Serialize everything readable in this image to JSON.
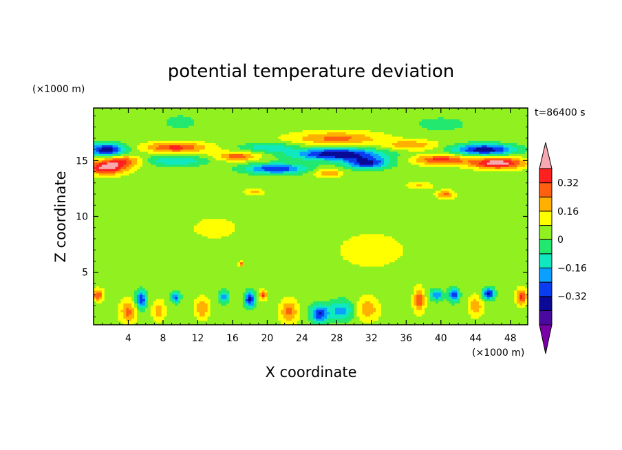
{
  "chart_data": {
    "type": "heatmap",
    "title": "potential temperature deviation",
    "xlabel": "X coordinate",
    "ylabel": "Z coordinate",
    "x_unit": "(×1000 m)",
    "y_unit": "(×1000 m)",
    "time_label": "t=86400 s",
    "xlim": [
      0,
      50
    ],
    "ylim": [
      0.3,
      19.7
    ],
    "x_ticks": [
      4,
      8,
      12,
      16,
      20,
      24,
      28,
      32,
      36,
      40,
      44,
      48
    ],
    "y_ticks": [
      5,
      10,
      15
    ],
    "colorbar": {
      "levels": [
        -0.48,
        -0.4,
        -0.32,
        -0.24,
        -0.16,
        -0.08,
        0,
        0.08,
        0.16,
        0.24,
        0.32,
        0.4
      ],
      "colors": [
        "#7a00a8",
        "#4a0aa0",
        "#0a0a96",
        "#0a3cf0",
        "#0aa0ff",
        "#10e8c0",
        "#22e870",
        "#90f020",
        "#ffff00",
        "#ffb000",
        "#ff6010",
        "#ff2020",
        "#f8a8b0"
      ],
      "tick_labels": [
        "0.32",
        "0.16",
        "0",
        "−0.16",
        "−0.32"
      ],
      "tick_values": [
        0.32,
        0.16,
        0,
        -0.16,
        -0.32
      ]
    },
    "features": [
      {
        "x": 1.5,
        "z": 16.0,
        "sx": 2.2,
        "sz": 0.55,
        "v": -0.42
      },
      {
        "x": 1.5,
        "z": 14.4,
        "sx": 2.2,
        "sz": 0.6,
        "v": 0.4
      },
      {
        "x": 3.5,
        "z": 15.0,
        "sx": 2.0,
        "sz": 0.5,
        "v": 0.24
      },
      {
        "x": 9.5,
        "z": 16.2,
        "sx": 3.5,
        "sz": 0.45,
        "v": 0.3
      },
      {
        "x": 9.5,
        "z": 15.0,
        "sx": 3.5,
        "sz": 0.45,
        "v": -0.2
      },
      {
        "x": 16.5,
        "z": 15.4,
        "sx": 2.5,
        "sz": 0.4,
        "v": 0.24
      },
      {
        "x": 20.0,
        "z": 16.2,
        "sx": 3.0,
        "sz": 0.4,
        "v": -0.18
      },
      {
        "x": 21.0,
        "z": 14.3,
        "sx": 3.5,
        "sz": 0.45,
        "v": -0.36
      },
      {
        "x": 28.0,
        "z": 17.0,
        "sx": 5.0,
        "sz": 0.6,
        "v": 0.22
      },
      {
        "x": 28.0,
        "z": 15.6,
        "sx": 5.0,
        "sz": 0.55,
        "v": -0.44
      },
      {
        "x": 31.5,
        "z": 14.8,
        "sx": 2.5,
        "sz": 0.5,
        "v": -0.38
      },
      {
        "x": 27.0,
        "z": 13.9,
        "sx": 1.5,
        "sz": 0.35,
        "v": 0.2
      },
      {
        "x": 36.5,
        "z": 16.4,
        "sx": 3.0,
        "sz": 0.45,
        "v": 0.18
      },
      {
        "x": 40.0,
        "z": 15.1,
        "sx": 3.0,
        "sz": 0.45,
        "v": 0.3
      },
      {
        "x": 45.0,
        "z": 16.0,
        "sx": 3.5,
        "sz": 0.5,
        "v": -0.42
      },
      {
        "x": 46.5,
        "z": 14.8,
        "sx": 3.0,
        "sz": 0.5,
        "v": 0.42
      },
      {
        "x": 40.5,
        "z": 12.0,
        "sx": 1.0,
        "sz": 0.35,
        "v": 0.22
      },
      {
        "x": 37.5,
        "z": 12.8,
        "sx": 1.5,
        "sz": 0.3,
        "v": 0.12
      },
      {
        "x": 18.5,
        "z": 12.2,
        "sx": 1.0,
        "sz": 0.3,
        "v": 0.14
      },
      {
        "x": 17.0,
        "z": 5.8,
        "sx": 0.25,
        "sz": 0.25,
        "v": 0.22
      },
      {
        "x": 0.5,
        "z": 3.0,
        "sx": 0.6,
        "sz": 0.5,
        "v": 0.28
      },
      {
        "x": 4.0,
        "z": 1.5,
        "sx": 0.9,
        "sz": 1.0,
        "v": 0.22
      },
      {
        "x": 5.5,
        "z": 2.6,
        "sx": 0.6,
        "sz": 0.8,
        "v": -0.36
      },
      {
        "x": 7.5,
        "z": 1.6,
        "sx": 0.7,
        "sz": 0.9,
        "v": 0.16
      },
      {
        "x": 9.5,
        "z": 2.8,
        "sx": 0.5,
        "sz": 0.5,
        "v": -0.3
      },
      {
        "x": 12.5,
        "z": 1.8,
        "sx": 0.8,
        "sz": 0.9,
        "v": 0.2
      },
      {
        "x": 15.0,
        "z": 2.8,
        "sx": 0.6,
        "sz": 0.6,
        "v": -0.24
      },
      {
        "x": 18.0,
        "z": 2.6,
        "sx": 0.6,
        "sz": 0.7,
        "v": -0.4
      },
      {
        "x": 19.5,
        "z": 3.0,
        "sx": 0.4,
        "sz": 0.4,
        "v": 0.3
      },
      {
        "x": 22.5,
        "z": 1.5,
        "sx": 1.0,
        "sz": 1.0,
        "v": 0.22
      },
      {
        "x": 26.0,
        "z": 1.3,
        "sx": 1.0,
        "sz": 0.8,
        "v": -0.36
      },
      {
        "x": 28.5,
        "z": 1.6,
        "sx": 1.5,
        "sz": 0.9,
        "v": -0.24
      },
      {
        "x": 31.5,
        "z": 1.7,
        "sx": 1.3,
        "sz": 1.0,
        "v": 0.18
      },
      {
        "x": 37.5,
        "z": 2.5,
        "sx": 0.6,
        "sz": 1.0,
        "v": 0.26
      },
      {
        "x": 39.5,
        "z": 3.0,
        "sx": 0.7,
        "sz": 0.5,
        "v": -0.28
      },
      {
        "x": 41.5,
        "z": 3.0,
        "sx": 0.6,
        "sz": 0.6,
        "v": -0.36
      },
      {
        "x": 44.0,
        "z": 2.0,
        "sx": 0.8,
        "sz": 0.9,
        "v": 0.18
      },
      {
        "x": 45.5,
        "z": 3.1,
        "sx": 0.7,
        "sz": 0.5,
        "v": -0.4
      },
      {
        "x": 49.3,
        "z": 2.8,
        "sx": 0.6,
        "sz": 0.7,
        "v": 0.3
      },
      {
        "x": 14.0,
        "z": 9.0,
        "sx": 4.0,
        "sz": 1.5,
        "v": 0.05
      },
      {
        "x": 32.0,
        "z": 7.0,
        "sx": 5.0,
        "sz": 2.0,
        "v": 0.06
      },
      {
        "x": 10.0,
        "z": 18.5,
        "sx": 3.0,
        "sz": 1.0,
        "v": -0.06
      },
      {
        "x": 40.0,
        "z": 18.3,
        "sx": 4.0,
        "sz": 0.8,
        "v": -0.07
      }
    ]
  }
}
